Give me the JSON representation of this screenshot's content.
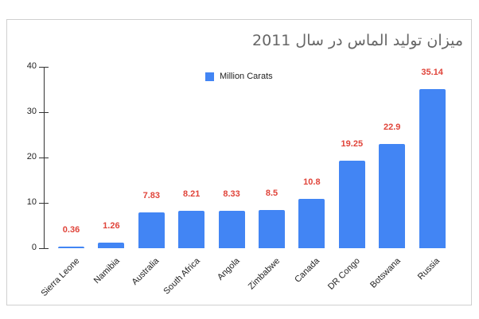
{
  "chart_data": {
    "type": "bar",
    "title": "میزان تولید الماس در سال 2011",
    "categories": [
      "Sierra Leone",
      "Namibia",
      "Australia",
      "South Africa",
      "Angola",
      "Zimbabwe",
      "Canada",
      "DR Congo",
      "Botswana",
      "Russia"
    ],
    "series": [
      {
        "name": "Million Carats",
        "values": [
          0.36,
          1.26,
          7.83,
          8.21,
          8.33,
          8.5,
          10.8,
          19.25,
          22.9,
          35.14
        ]
      }
    ],
    "data_labels": [
      "0.36",
      "1.26",
      "7.83",
      "8.21",
      "8.33",
      "8.5",
      "10.8",
      "19.25",
      "22.9",
      "35.14"
    ],
    "xlabel": "",
    "ylabel": "",
    "ylim": [
      0,
      40
    ],
    "yticks": [
      "0",
      "10",
      "20",
      "30",
      "40"
    ],
    "grid": false,
    "legend_position": "top-inside",
    "colors": {
      "bar": "#4285F4",
      "data_label": "#E0443A",
      "title": "#666666"
    }
  }
}
